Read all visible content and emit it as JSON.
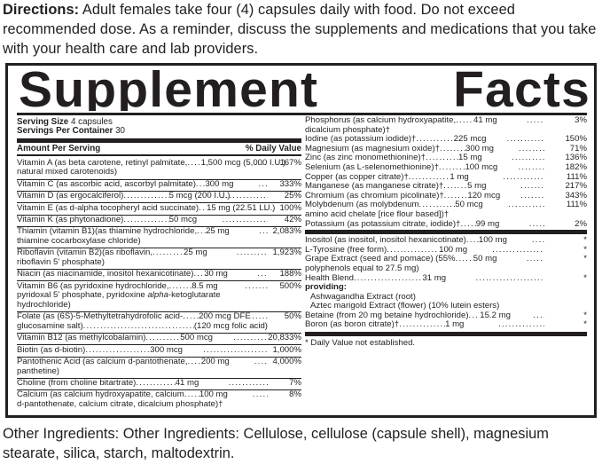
{
  "directions": {
    "label": "Directions:",
    "text": " Adult females  take four (4) capsules daily with food. Do not exceed recommended dose. As a reminder, discuss the supplements and medications that you take with your health care and lab  providers."
  },
  "panel": {
    "title": "Supplement Facts",
    "serving_size_label": "Serving Size",
    "serving_size_value": "4 capsules",
    "servings_per_container_label": "Servings Per Container",
    "servings_per_container_value": "30",
    "amount_header": "Amount Per Serving",
    "dv_header": "% Daily Value",
    "left_rows": [
      {
        "name": "Vitamin A (as beta carotene, retinyl palmitate,",
        "amount": "1,500 mcg (5,000 I.U.)",
        "dv": "167%",
        "cont": "natural mixed carotenoids)"
      },
      {
        "name": "Vitamin C (as ascorbic acid, ascorbyl palmitate)",
        "amount": "300 mg",
        "dv": "333%"
      },
      {
        "name": "Vitamin D (as ergocalciferol)",
        "amount": "5 mcg (200 I.U.)",
        "dv": "25%"
      },
      {
        "name": "Vitamin E (as d-alpha tocopheryl acid succinate)",
        "amount": "15 mg (22.51 I.U.)",
        "dv": "100%"
      },
      {
        "name": "Vitamin K (as phytonadione)",
        "amount": "50 mcg",
        "dv": "42%"
      },
      {
        "name": "Thiamin (vitamin B1)(as thiamine hydrochloride,",
        "amount": "25 mg",
        "dv": "2,083%",
        "cont": "thiamine cocarboxylase chloride)"
      },
      {
        "name": "Riboflavin (vitamin B2)(as riboflavin,",
        "amount": "25 mg",
        "dv": "1,923%",
        "cont": "riboflavin 5' phosphate)"
      },
      {
        "name": "Niacin (as niacinamide, inositol hexanicotinate)",
        "amount": "30 mg",
        "dv": "188%"
      },
      {
        "name": "Vitamin B6 (as pyridoxine hydrochloride,",
        "amount": "8.5 mg",
        "dv": "500%",
        "cont": "pyridoxal 5' phosphate, pyridoxine alpha-ketoglutarate",
        "cont2": "hydrochloride)"
      },
      {
        "name": "Folate (as (6S)-5-Methyltetrahydrofolic acid-",
        "amount": "200 mcg DFE",
        "dv": "50%",
        "cont": "glucosamine salt)",
        "cont_amount": "(120 mcg folic acid)"
      },
      {
        "name": "Vitamin B12 (as methylcobalamin)",
        "amount": "500 mcg",
        "dv": "20,833%"
      },
      {
        "name": "Biotin (as d-biotin)",
        "amount": "300 mcg",
        "dv": "1,000%"
      },
      {
        "name": "Pantothenic Acid (as calcium d-pantothenate,",
        "amount": "200 mg",
        "dv": "4,000%",
        "cont": "panthetine)"
      },
      {
        "name": "Choline (from choline bitartrate)",
        "amount": "41 mg",
        "dv": "7%"
      },
      {
        "name": "Calcium (as calcium hydroxyapatite, calcium",
        "amount": "100 mg",
        "dv": "8%",
        "cont": "d-pantothenate, calcium citrate, dicalcium phosphate)†"
      }
    ],
    "right_rows": [
      {
        "name": "Phosphorus (as calcium hydroxyapatite,",
        "amount": "41 mg",
        "dv": "3%",
        "cont": "dicalcium phosphate)†"
      },
      {
        "name": "Iodine (as potassium iodide)†",
        "amount": "225 mcg",
        "dv": "150%"
      },
      {
        "name": "Magnesium (as magnesium oxide)†",
        "amount": "300 mg",
        "dv": "71%"
      },
      {
        "name": "Zinc (as zinc monomethionine)†",
        "amount": "15 mg",
        "dv": "136%"
      },
      {
        "name": "Selenium (as L-selenomethionine)†",
        "amount": "100 mcg",
        "dv": "182%"
      },
      {
        "name": "Copper (as copper citrate)†",
        "amount": "1 mg",
        "dv": "111%"
      },
      {
        "name": "Manganese (as manganese citrate)†",
        "amount": "5 mg",
        "dv": "217%"
      },
      {
        "name": "Chromium (as chromium picolinate)†",
        "amount": "120 mcg",
        "dv": "343%"
      },
      {
        "name": "Molybdenum (as molybdenum",
        "amount": "50 mcg",
        "dv": "111%",
        "cont": "amino acid chelate [rice flour based])†"
      },
      {
        "name": "Potassium (as potassium citrate, iodide)†",
        "amount": "99 mg",
        "dv": "2%"
      }
    ],
    "right_rows2": [
      {
        "name": "Inositol (as inositol, inositol hexanicotinate)",
        "amount": "100 mg",
        "dv": "*"
      },
      {
        "name": "L-Tyrosine (free form)",
        "amount": "100 mg",
        "dv": "*"
      },
      {
        "name": "Grape Extract (seed and pomace) (55%",
        "amount": "50 mg",
        "dv": "*",
        "cont": "polyphenols equal to 27.5 mg)"
      },
      {
        "name": "Health Blend",
        "amount": "31 mg",
        "dv": "*"
      }
    ],
    "providing_label": "providing:",
    "providing_items": [
      "Ashwagandha Extract (root)",
      "Aztec marigold Extract (flower) (10% lutein esters)"
    ],
    "right_rows3": [
      {
        "name": "Betaine (from 20 mg betaine hydrochloride)",
        "amount": "15.2 mg",
        "dv": "*"
      },
      {
        "name": "Boron (as boron citrate)†",
        "amount": "1 mg",
        "dv": "*"
      }
    ],
    "footnote": "* Daily Value not established."
  },
  "other_ingredients": "Other Ingredients: Other Ingredients:  Cellulose, cellulose (capsule shell), magnesium stearate, silica, starch, maltodextrin."
}
